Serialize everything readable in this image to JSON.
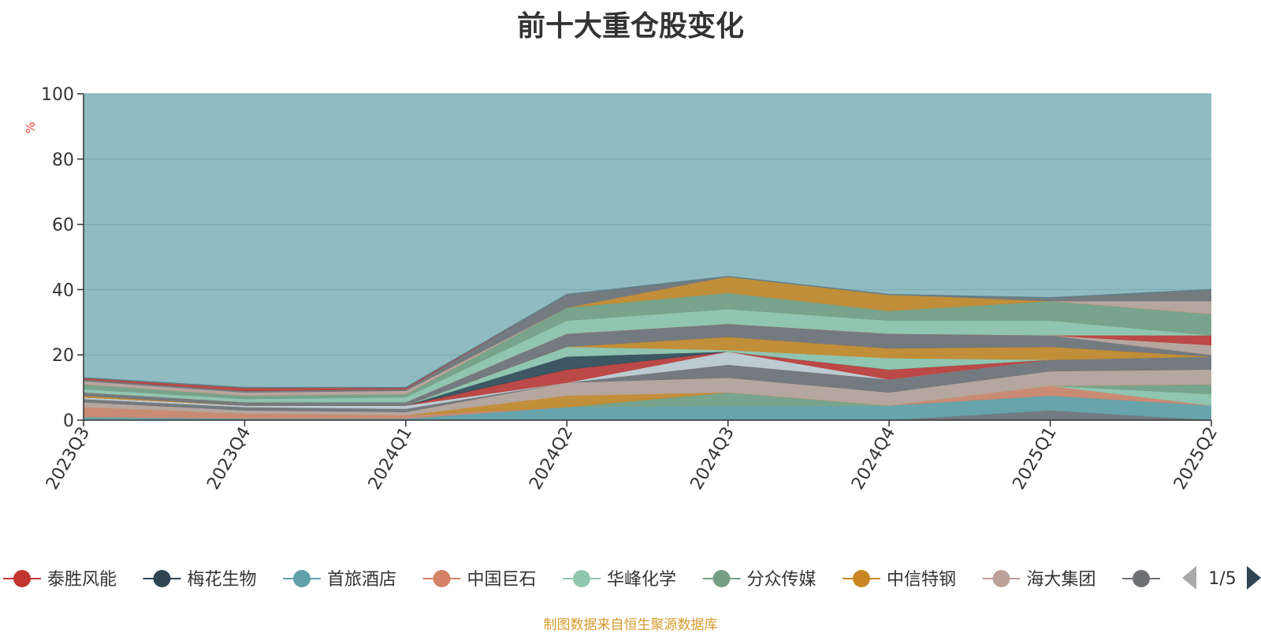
{
  "title": "前十大重仓股变化",
  "source_note": "制图数据来自恒生聚源数据库",
  "legend_page": "1/5",
  "colors": {
    "background": "#8fbbc1",
    "axis": "#333333",
    "grid": "#7aa9b0",
    "ylabel": "#e8413a",
    "title": "#333333",
    "source_note": "#d69a2e",
    "pager_active": "#2f4554",
    "pager_inactive": "#aaaaaa"
  },
  "chart_data": {
    "type": "area",
    "stacked": true,
    "title": "前十大重仓股变化",
    "ylabel": "%",
    "ylim": [
      0,
      100
    ],
    "yticks": [
      0,
      20,
      40,
      60,
      80,
      100
    ],
    "grid": true,
    "legend_position": "bottom",
    "categories": [
      "2023Q3",
      "2023Q4",
      "2024Q1",
      "2024Q2",
      "2024Q3",
      "2024Q4",
      "2025Q1",
      "2025Q2"
    ],
    "series": [
      {
        "name": "",
        "color": "#6e7074",
        "values": [
          0,
          0,
          0,
          0,
          0,
          0,
          3,
          0
        ]
      },
      {
        "name": "首旅酒店",
        "color": "#61a0a8",
        "values": [
          1,
          0.5,
          0.5,
          4,
          4.5,
          4.5,
          4.5,
          4.5
        ]
      },
      {
        "name": "中国巨石",
        "color": "#d48265",
        "values": [
          3,
          1.5,
          1,
          0,
          0,
          0,
          3,
          0
        ]
      },
      {
        "name": "华峰化学",
        "color": "#91c7ae",
        "values": [
          0,
          0,
          0,
          0,
          0,
          0,
          0,
          3.5
        ]
      },
      {
        "name": "分众传媒",
        "color": "#749f83",
        "values": [
          0,
          0,
          0,
          0,
          4,
          0,
          0,
          3
        ]
      },
      {
        "name": "中信特钢",
        "color": "#ca8622",
        "values": [
          0,
          0,
          0,
          3.5,
          0,
          0,
          0,
          0
        ]
      },
      {
        "name": "海大集团",
        "color": "#bda29a",
        "values": [
          1.5,
          1,
          1,
          4,
          4.5,
          4,
          4.5,
          4.5
        ]
      },
      {
        "name": "",
        "color": "#6e7074",
        "values": [
          1,
          1,
          1,
          0,
          4,
          4,
          3.5,
          4
        ]
      },
      {
        "name": "",
        "color": "#c4ccd3",
        "values": [
          0.5,
          0.5,
          1,
          0,
          4,
          0,
          0,
          0
        ]
      },
      {
        "name": "泰胜风能",
        "color": "#c23531",
        "values": [
          0,
          0,
          0,
          4,
          0,
          3,
          0,
          0
        ]
      },
      {
        "name": "梅花生物",
        "color": "#2f4554",
        "values": [
          0,
          0,
          0,
          4,
          0,
          0,
          0,
          0
        ]
      },
      {
        "name": "",
        "color": "#91c7ae",
        "values": [
          0,
          0,
          0,
          3,
          0.5,
          3.5,
          0,
          0
        ]
      },
      {
        "name": "",
        "color": "#ca8622",
        "values": [
          0.5,
          0,
          0,
          0,
          4,
          3,
          4,
          0
        ]
      },
      {
        "name": "",
        "color": "#6e7074",
        "values": [
          1,
          1,
          1,
          4,
          4,
          4.5,
          3.5,
          0.5
        ]
      },
      {
        "name": "",
        "color": "#bda29a",
        "values": [
          0,
          0,
          0,
          0,
          0,
          0,
          0,
          3
        ]
      },
      {
        "name": "",
        "color": "#c23531",
        "values": [
          0,
          0,
          0,
          0,
          0,
          0,
          0,
          3
        ]
      },
      {
        "name": "",
        "color": "#91c7ae",
        "values": [
          1,
          1,
          1.5,
          4,
          4.5,
          4,
          4.5,
          0
        ]
      },
      {
        "name": "",
        "color": "#749f83",
        "values": [
          1.5,
          1,
          1,
          4,
          5,
          3,
          6,
          6.5
        ]
      },
      {
        "name": "",
        "color": "#ca8622",
        "values": [
          0,
          0,
          0,
          0,
          5,
          5,
          0,
          0
        ]
      },
      {
        "name": "",
        "color": "#bda29a",
        "values": [
          1,
          1,
          1,
          0,
          0,
          0,
          0,
          4
        ]
      },
      {
        "name": "",
        "color": "#6e7074",
        "values": [
          0.5,
          0.5,
          0.5,
          4,
          0,
          0,
          1,
          3.5
        ]
      },
      {
        "name": "",
        "color": "#c23531",
        "values": [
          0.5,
          1,
          0.5,
          0,
          0,
          0,
          0,
          0
        ]
      }
    ]
  },
  "legend_items": [
    {
      "label": "泰胜风能",
      "color": "#c23531"
    },
    {
      "label": "梅花生物",
      "color": "#2f4554"
    },
    {
      "label": "首旅酒店",
      "color": "#61a0a8"
    },
    {
      "label": "中国巨石",
      "color": "#d48265"
    },
    {
      "label": "华峰化学",
      "color": "#91c7ae"
    },
    {
      "label": "分众传媒",
      "color": "#749f83"
    },
    {
      "label": "中信特钢",
      "color": "#ca8622"
    },
    {
      "label": "海大集团",
      "color": "#bda29a"
    },
    {
      "label": "",
      "color": "#6e7074"
    }
  ]
}
